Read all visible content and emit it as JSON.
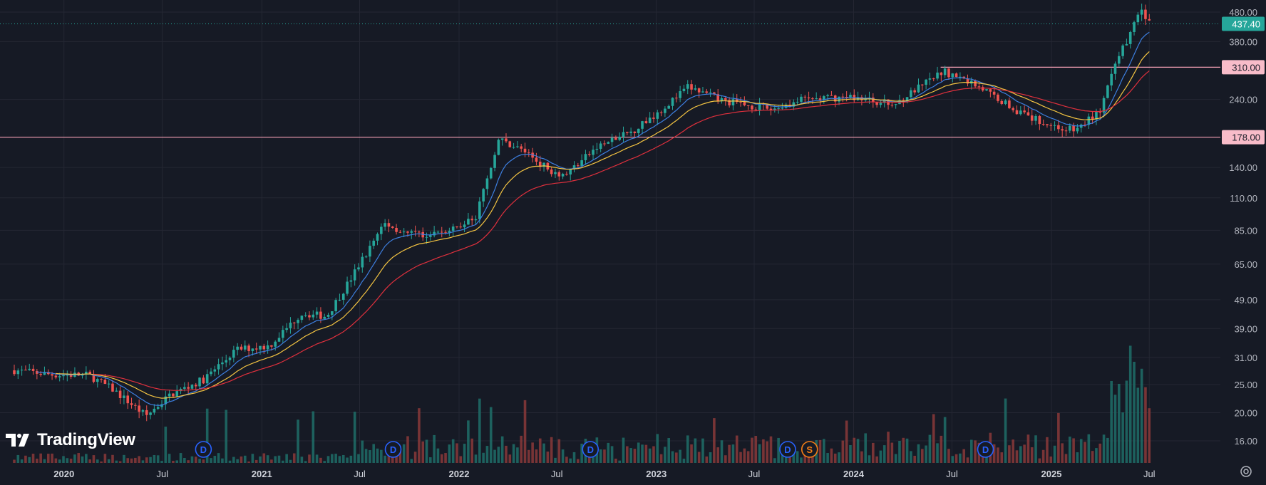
{
  "brand": {
    "name": "TradingView",
    "logo_icon": "tradingview-logo-icon"
  },
  "price_axis": {
    "ticks": [
      "480.00",
      "380.00",
      "240.00",
      "140.00",
      "110.00",
      "85.00",
      "65.00",
      "49.00",
      "39.00",
      "31.00",
      "25.00",
      "20.00",
      "16.00"
    ],
    "current_price": "437.40",
    "levels": [
      "310.00",
      "178.00"
    ]
  },
  "time_axis": {
    "labels": [
      "2020",
      "Jul",
      "2021",
      "Jul",
      "2022",
      "Jul",
      "2023",
      "Jul",
      "2024",
      "Jul",
      "2025",
      "Jul"
    ]
  },
  "event_markers": [
    {
      "label": "D",
      "type": "dividend"
    },
    {
      "label": "D",
      "type": "dividend"
    },
    {
      "label": "D",
      "type": "dividend"
    },
    {
      "label": "D",
      "type": "dividend"
    },
    {
      "label": "S",
      "type": "split"
    },
    {
      "label": "D",
      "type": "dividend"
    }
  ],
  "colors": {
    "background": "#161a25",
    "grid": "#242733",
    "up": "#26a69a",
    "down": "#ef5350",
    "ma_fast": "#3d7fe0",
    "ma_mid": "#f5c542",
    "ma_slow": "#e0303d",
    "level_line": "#f7a1b7",
    "current_tag": "#26a69a",
    "dividend": "#2962ff",
    "split": "#f57f17"
  },
  "chart_data": {
    "type": "candlestick",
    "scale": "log",
    "ylim": [
      14,
      520
    ],
    "x_range": [
      "2019-10-01",
      "2025-07-31"
    ],
    "price_path": [
      [
        "2019-10-01",
        28
      ],
      [
        "2019-12-15",
        27
      ],
      [
        "2020-02-15",
        27
      ],
      [
        "2020-04-01",
        24
      ],
      [
        "2020-06-01",
        19.5
      ],
      [
        "2020-07-15",
        23
      ],
      [
        "2020-09-15",
        26
      ],
      [
        "2020-11-15",
        33
      ],
      [
        "2021-01-15",
        34
      ],
      [
        "2021-03-15",
        44
      ],
      [
        "2021-05-01",
        43
      ],
      [
        "2021-06-15",
        58
      ],
      [
        "2021-08-15",
        90
      ],
      [
        "2021-10-01",
        82
      ],
      [
        "2021-12-15",
        84
      ],
      [
        "2022-02-01",
        95
      ],
      [
        "2022-03-15",
        175
      ],
      [
        "2022-05-01",
        160
      ],
      [
        "2022-06-15",
        138
      ],
      [
        "2022-07-15",
        132
      ],
      [
        "2022-09-15",
        165
      ],
      [
        "2022-11-15",
        185
      ],
      [
        "2023-01-15",
        225
      ],
      [
        "2023-03-01",
        265
      ],
      [
        "2023-05-01",
        238
      ],
      [
        "2023-08-01",
        222
      ],
      [
        "2023-10-01",
        240
      ],
      [
        "2024-01-01",
        245
      ],
      [
        "2024-03-15",
        230
      ],
      [
        "2024-06-15",
        300
      ],
      [
        "2024-08-15",
        270
      ],
      [
        "2024-11-15",
        210
      ],
      [
        "2025-01-15",
        192
      ],
      [
        "2025-02-15",
        188
      ],
      [
        "2025-04-01",
        220
      ],
      [
        "2025-05-01",
        320
      ],
      [
        "2025-06-15",
        490
      ],
      [
        "2025-07-01",
        437
      ]
    ],
    "current_price": 437.4,
    "horizontal_levels": [
      310,
      178
    ],
    "moving_averages": [
      "ma_fast",
      "ma_mid",
      "ma_slow"
    ],
    "events": [
      {
        "date": "2020-09-15",
        "type": "D"
      },
      {
        "date": "2021-09-01",
        "type": "D"
      },
      {
        "date": "2022-09-01",
        "type": "D"
      },
      {
        "date": "2023-09-01",
        "type": "D"
      },
      {
        "date": "2023-10-01",
        "type": "S"
      },
      {
        "date": "2024-09-01",
        "type": "D"
      }
    ]
  }
}
